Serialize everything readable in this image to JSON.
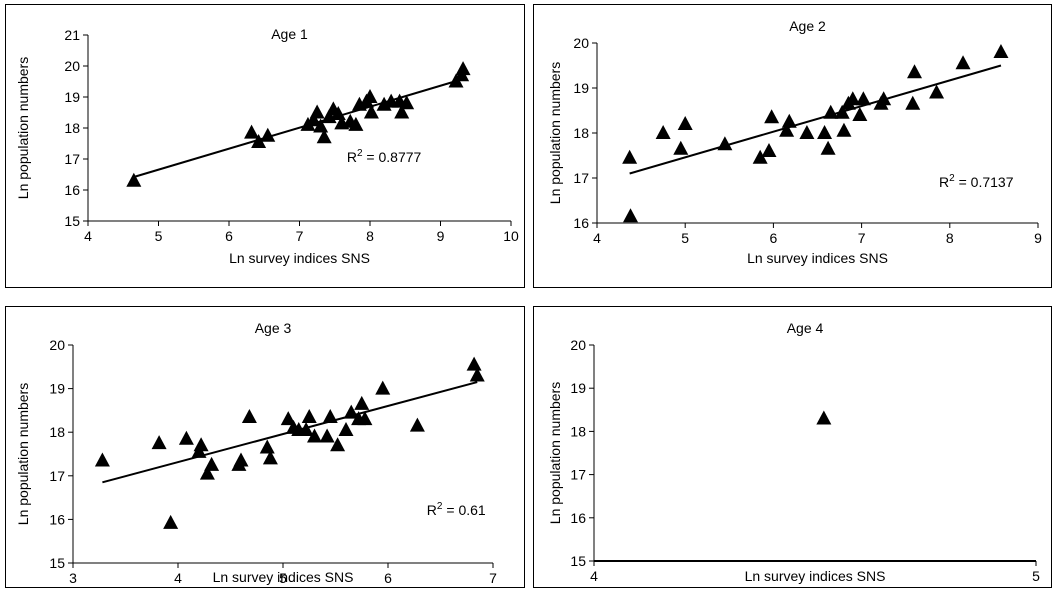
{
  "chart_data": [
    {
      "type": "scatter",
      "title": "Age 1",
      "xlabel": "Ln survey indices SNS",
      "ylabel": "Ln population numbers",
      "xlim": [
        4,
        10
      ],
      "ylim": [
        15,
        21
      ],
      "xticks": [
        4,
        5,
        6,
        7,
        8,
        9,
        10
      ],
      "yticks": [
        15,
        16,
        17,
        18,
        19,
        20,
        21
      ],
      "points": [
        [
          4.65,
          16.3
        ],
        [
          6.32,
          17.85
        ],
        [
          6.42,
          17.55
        ],
        [
          6.55,
          17.75
        ],
        [
          7.12,
          18.1
        ],
        [
          7.2,
          18.25
        ],
        [
          7.25,
          18.5
        ],
        [
          7.3,
          18.05
        ],
        [
          7.35,
          17.7
        ],
        [
          7.42,
          18.35
        ],
        [
          7.48,
          18.6
        ],
        [
          7.55,
          18.45
        ],
        [
          7.6,
          18.15
        ],
        [
          7.72,
          18.2
        ],
        [
          7.8,
          18.1
        ],
        [
          7.85,
          18.75
        ],
        [
          7.95,
          18.85
        ],
        [
          8.0,
          19.0
        ],
        [
          8.02,
          18.5
        ],
        [
          8.2,
          18.75
        ],
        [
          8.3,
          18.85
        ],
        [
          8.42,
          18.85
        ],
        [
          8.45,
          18.5
        ],
        [
          8.52,
          18.8
        ],
        [
          9.22,
          19.5
        ],
        [
          9.3,
          19.7
        ],
        [
          9.32,
          19.9
        ]
      ],
      "trendline": [
        [
          4.65,
          16.42
        ],
        [
          9.32,
          19.58
        ]
      ],
      "annotation": {
        "text": "R² = 0.8777",
        "x": 8.2,
        "y": 16.9
      }
    },
    {
      "type": "scatter",
      "title": "Age 2",
      "xlabel": "Ln survey indices SNS",
      "ylabel": "Ln population numbers",
      "xlim": [
        4,
        9
      ],
      "ylim": [
        16,
        20
      ],
      "xticks": [
        4,
        5,
        6,
        7,
        8,
        9
      ],
      "yticks": [
        16,
        17,
        18,
        19,
        20
      ],
      "points": [
        [
          4.37,
          17.45
        ],
        [
          4.38,
          16.15
        ],
        [
          4.75,
          18.0
        ],
        [
          4.95,
          17.65
        ],
        [
          5.0,
          18.2
        ],
        [
          5.45,
          17.75
        ],
        [
          5.85,
          17.45
        ],
        [
          5.95,
          17.6
        ],
        [
          5.98,
          18.35
        ],
        [
          6.15,
          18.05
        ],
        [
          6.18,
          18.25
        ],
        [
          6.38,
          18.0
        ],
        [
          6.58,
          18.0
        ],
        [
          6.62,
          17.65
        ],
        [
          6.65,
          18.45
        ],
        [
          6.78,
          18.45
        ],
        [
          6.8,
          18.05
        ],
        [
          6.85,
          18.65
        ],
        [
          6.9,
          18.75
        ],
        [
          6.98,
          18.4
        ],
        [
          7.02,
          18.75
        ],
        [
          7.22,
          18.65
        ],
        [
          7.25,
          18.75
        ],
        [
          7.58,
          18.65
        ],
        [
          7.6,
          19.35
        ],
        [
          7.85,
          18.9
        ],
        [
          8.15,
          19.55
        ],
        [
          8.58,
          19.8
        ]
      ],
      "trendline": [
        [
          4.37,
          17.1
        ],
        [
          8.58,
          19.5
        ]
      ],
      "annotation": {
        "text": "R² = 0.7137",
        "x": 8.3,
        "y": 16.8
      }
    },
    {
      "type": "scatter",
      "title": "Age 3",
      "xlabel": "Ln survey indices SNS",
      "ylabel": "Ln population numbers",
      "xlim": [
        3,
        7
      ],
      "ylim": [
        15,
        20
      ],
      "xticks": [
        3,
        4,
        5,
        6,
        7
      ],
      "yticks": [
        15,
        16,
        17,
        18,
        19,
        20
      ],
      "points": [
        [
          3.28,
          17.35
        ],
        [
          3.82,
          17.75
        ],
        [
          3.93,
          15.92
        ],
        [
          4.08,
          17.85
        ],
        [
          4.2,
          17.55
        ],
        [
          4.22,
          17.7
        ],
        [
          4.28,
          17.05
        ],
        [
          4.32,
          17.25
        ],
        [
          4.58,
          17.25
        ],
        [
          4.6,
          17.35
        ],
        [
          4.68,
          18.35
        ],
        [
          4.85,
          17.65
        ],
        [
          4.88,
          17.4
        ],
        [
          5.05,
          18.3
        ],
        [
          5.1,
          18.1
        ],
        [
          5.15,
          18.05
        ],
        [
          5.22,
          18.05
        ],
        [
          5.25,
          18.35
        ],
        [
          5.3,
          17.9
        ],
        [
          5.42,
          17.9
        ],
        [
          5.45,
          18.35
        ],
        [
          5.52,
          17.7
        ],
        [
          5.6,
          18.05
        ],
        [
          5.65,
          18.45
        ],
        [
          5.72,
          18.3
        ],
        [
          5.75,
          18.65
        ],
        [
          5.78,
          18.3
        ],
        [
          5.95,
          19.0
        ],
        [
          6.28,
          18.15
        ],
        [
          6.82,
          19.55
        ],
        [
          6.85,
          19.3
        ]
      ],
      "trendline": [
        [
          3.28,
          16.85
        ],
        [
          6.85,
          19.15
        ]
      ],
      "annotation": {
        "text": "R² = 0.61",
        "x": 6.65,
        "y": 16.1
      }
    },
    {
      "type": "scatter",
      "title": "Age 4",
      "xlabel": "Ln survey indices SNS",
      "ylabel": "Ln population numbers",
      "xlim": [
        4,
        5
      ],
      "ylim": [
        15,
        20
      ],
      "xticks": [
        4,
        5
      ],
      "yticks": [
        15,
        16,
        17,
        18,
        19,
        20
      ],
      "points": [
        [
          4.52,
          18.3
        ]
      ],
      "trendline": null,
      "annotation": null
    }
  ]
}
